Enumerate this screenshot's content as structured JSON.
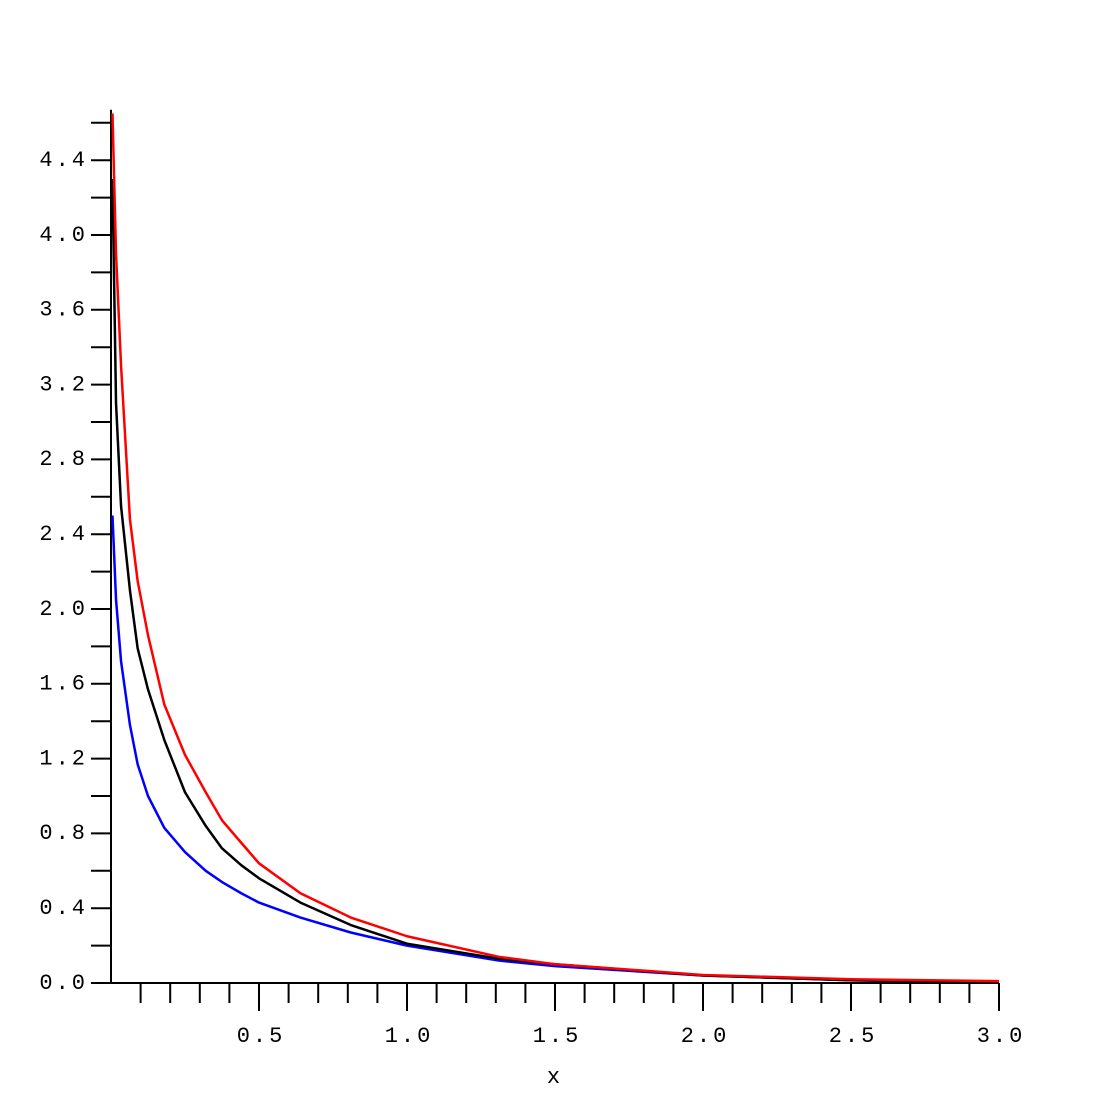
{
  "chart_data": {
    "type": "line",
    "xlabel": "x",
    "x": [
      0.005,
      0.017,
      0.034,
      0.064,
      0.09,
      0.125,
      0.18,
      0.25,
      0.32,
      0.375,
      0.44,
      0.5,
      0.64,
      0.81,
      1.0,
      1.31,
      1.5,
      2.0,
      2.5,
      3.0
    ],
    "series": [
      {
        "color": "#0000ff",
        "values": [
          2.5,
          2.05,
          1.72,
          1.38,
          1.17,
          1.0,
          0.83,
          0.7,
          0.6,
          0.54,
          0.48,
          0.43,
          0.35,
          0.27,
          0.2,
          0.12,
          0.09,
          0.04,
          0.015,
          0.005
        ]
      },
      {
        "color": "#000000",
        "values": [
          4.3,
          3.1,
          2.55,
          2.1,
          1.79,
          1.57,
          1.3,
          1.02,
          0.84,
          0.72,
          0.63,
          0.56,
          0.43,
          0.31,
          0.21,
          0.13,
          0.1,
          0.04,
          0.015,
          0.005
        ]
      },
      {
        "color": "#ff0000",
        "values": [
          4.65,
          3.9,
          3.3,
          2.48,
          2.15,
          1.86,
          1.49,
          1.22,
          1.02,
          0.87,
          0.75,
          0.64,
          0.48,
          0.35,
          0.25,
          0.14,
          0.1,
          0.043,
          0.02,
          0.01
        ]
      }
    ],
    "xlim": [
      0,
      3.0
    ],
    "ylim": [
      0,
      4.67
    ],
    "xticks": [
      0.5,
      {
        "value": 1,
        "label": "1.0"
      },
      1.5,
      {
        "value": 2,
        "label": "2.0"
      },
      2.5,
      {
        "value": 3,
        "label": "3.0"
      }
    ],
    "yticks": [
      {
        "value": 0,
        "label": "0.0"
      },
      0.4,
      0.8,
      1.2,
      1.6,
      {
        "value": 2,
        "label": "2.0"
      },
      2.4,
      2.8,
      3.2,
      3.6,
      {
        "value": 4,
        "label": "4.0"
      },
      4.4
    ],
    "xminorticks": [
      0.1,
      0.2,
      0.3,
      0.4,
      0.6,
      0.7,
      0.8,
      0.9,
      1.1,
      1.2,
      1.3,
      1.4,
      1.6,
      1.7,
      1.8,
      1.9,
      2.1,
      2.2,
      2.3,
      2.4,
      2.6,
      2.7,
      2.8,
      2.9
    ],
    "yminorticks": [
      0.2,
      0.6,
      1.0,
      1.4,
      1.8,
      2.2,
      2.6,
      3.0,
      3.4,
      3.8,
      4.2,
      4.6
    ],
    "grid": false
  }
}
